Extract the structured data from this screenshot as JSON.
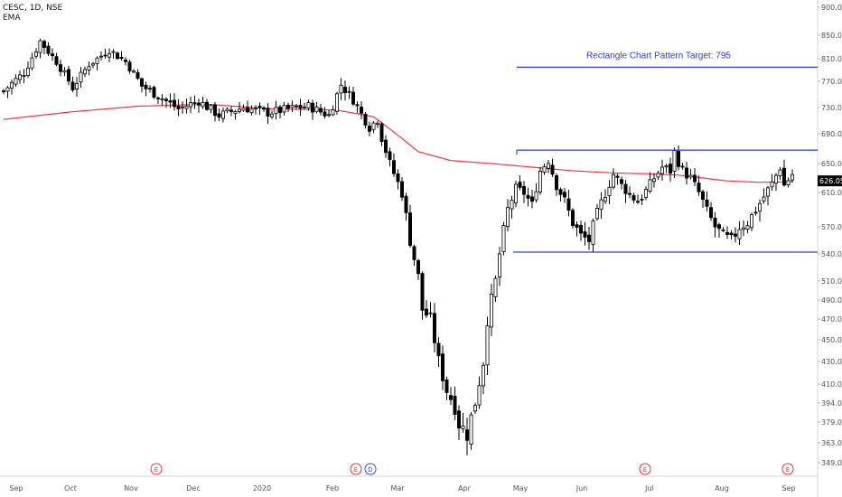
{
  "header": {
    "symbol_line": "CESC, 1D, NSE",
    "indicator": "EMA"
  },
  "colors": {
    "up_candle": "#ffffff",
    "down_candle": "#000000",
    "candle_outline": "#000000",
    "ema": "#f23645",
    "pattern_line": "#2e3ae8",
    "last_price_badge": "#000000",
    "axis_text": "#50535e",
    "event_earnings": "#e53935",
    "event_dividend": "#1e53e5"
  },
  "chart_data": {
    "type": "candlestick",
    "title": "",
    "ylim": [
      340,
      910
    ],
    "y_ticks": [
      "900.00",
      "850.00",
      "810.00",
      "770.00",
      "730.00",
      "690.00",
      "650.00",
      "610.00",
      "570.00",
      "540.00",
      "510.00",
      "490.00",
      "470.00",
      "450.00",
      "430.00",
      "410.00",
      "394.00",
      "379.00",
      "363.00",
      "349.00"
    ],
    "x_ticks": [
      "Sep",
      "Oct",
      "Nov",
      "Dec",
      "2020",
      "Feb",
      "Mar",
      "Apr",
      "May",
      "Jun",
      "Jul",
      "Aug",
      "Sep"
    ],
    "last_price": "626.05",
    "price_path": [
      [
        0,
        755
      ],
      [
        5,
        785
      ],
      [
        9,
        840
      ],
      [
        13,
        805
      ],
      [
        17,
        760
      ],
      [
        21,
        800
      ],
      [
        26,
        825
      ],
      [
        30,
        805
      ],
      [
        34,
        763
      ],
      [
        38,
        748
      ],
      [
        43,
        728
      ],
      [
        48,
        740
      ],
      [
        53,
        718
      ],
      [
        59,
        730
      ],
      [
        65,
        722
      ],
      [
        70,
        728
      ],
      [
        75,
        732
      ],
      [
        80,
        718
      ],
      [
        83,
        765
      ],
      [
        86,
        742
      ],
      [
        88,
        720
      ],
      [
        90,
        700
      ],
      [
        92,
        712
      ],
      [
        93,
        685
      ],
      [
        95,
        650
      ],
      [
        98,
        610
      ],
      [
        100,
        555
      ],
      [
        102,
        515
      ],
      [
        103,
        480
      ],
      [
        105,
        470
      ],
      [
        107,
        430
      ],
      [
        109,
        405
      ],
      [
        111,
        392
      ],
      [
        112,
        378
      ],
      [
        114,
        370
      ],
      [
        116,
        395
      ],
      [
        118,
        430
      ],
      [
        119,
        470
      ],
      [
        121,
        510
      ],
      [
        122,
        540
      ],
      [
        124,
        590
      ],
      [
        126,
        615
      ],
      [
        128,
        610
      ],
      [
        130,
        595
      ],
      [
        132,
        640
      ],
      [
        134,
        655
      ],
      [
        136,
        620
      ],
      [
        138,
        600
      ],
      [
        140,
        575
      ],
      [
        142,
        560
      ],
      [
        144,
        555
      ],
      [
        146,
        585
      ],
      [
        148,
        610
      ],
      [
        150,
        635
      ],
      [
        152,
        620
      ],
      [
        154,
        608
      ],
      [
        156,
        600
      ],
      [
        158,
        612
      ],
      [
        160,
        630
      ],
      [
        162,
        645
      ],
      [
        164,
        640
      ],
      [
        165,
        665
      ],
      [
        167,
        640
      ],
      [
        169,
        630
      ],
      [
        171,
        610
      ],
      [
        173,
        588
      ],
      [
        175,
        570
      ],
      [
        177,
        560
      ],
      [
        179,
        555
      ],
      [
        181,
        570
      ],
      [
        183,
        575
      ],
      [
        185,
        590
      ],
      [
        187,
        605
      ],
      [
        189,
        622
      ],
      [
        191,
        645
      ],
      [
        192,
        620
      ],
      [
        194,
        635
      ]
    ],
    "ema": [
      [
        0,
        712
      ],
      [
        16,
        723
      ],
      [
        33,
        732
      ],
      [
        50,
        735
      ],
      [
        66,
        728
      ],
      [
        82,
        726
      ],
      [
        91,
        716
      ],
      [
        97,
        688
      ],
      [
        102,
        666
      ],
      [
        110,
        654
      ],
      [
        120,
        650
      ],
      [
        130,
        645
      ],
      [
        140,
        640
      ],
      [
        150,
        637
      ],
      [
        158,
        636
      ],
      [
        166,
        634
      ],
      [
        172,
        630
      ],
      [
        178,
        626
      ],
      [
        186,
        624
      ],
      [
        194,
        625
      ]
    ],
    "rectangle_pattern": {
      "resistance": 668,
      "support": 542,
      "target": 795
    },
    "annotations": [
      {
        "text": "Rectangle Chart Pattern Target: 795"
      }
    ],
    "events": [
      {
        "type": "earnings",
        "label": "E"
      },
      {
        "type": "earnings",
        "label": "E"
      },
      {
        "type": "dividend",
        "label": "D"
      },
      {
        "type": "earnings",
        "label": "E"
      },
      {
        "type": "earnings",
        "label": "E"
      }
    ]
  }
}
